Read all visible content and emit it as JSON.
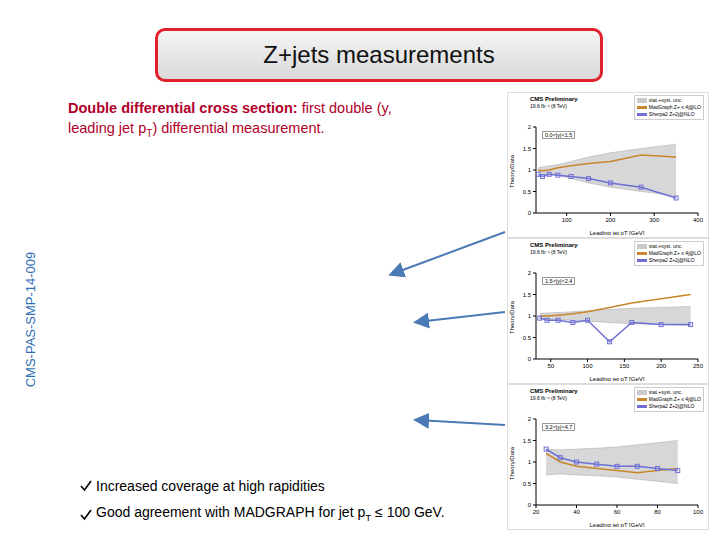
{
  "slide": {
    "title": "Z+jets measurements",
    "heading": {
      "lead": "Double differential cross section:",
      "text": " first double (y, leading jet pT) differential measurement."
    },
    "side_label": "CMS-PAS-SMP-14-009",
    "bullets": [
      "Increased coverage at high rapidities",
      "Good agreement with MADGRAPH for jet pT ≤ 100 GeV."
    ]
  },
  "chart_data": [
    {
      "type": "line",
      "title": "CMS Preliminary",
      "subtitle": "19.6 fb⁻¹ (8 TeV)",
      "annotation": "0.0<|y|<1.5",
      "x_label": "Leading jet pT [GeV]",
      "y_label": "Theory/Data",
      "xlim": [
        30,
        400
      ],
      "xticks": [
        100,
        200,
        300,
        400
      ],
      "ylim": [
        0,
        2
      ],
      "yticks": [
        0,
        0.5,
        1,
        1.5,
        2
      ],
      "legend": "upper right",
      "x": [
        35,
        45,
        60,
        80,
        110,
        150,
        200,
        270,
        350
      ],
      "series": [
        {
          "name": "stat.+syst. unc.",
          "type": "band",
          "color": "#a6a6a6",
          "low": [
            0.95,
            0.93,
            0.9,
            0.88,
            0.8,
            0.7,
            0.6,
            0.5,
            0.4
          ],
          "high": [
            1.05,
            1.07,
            1.1,
            1.12,
            1.2,
            1.3,
            1.4,
            1.5,
            1.6
          ]
        },
        {
          "name": "MadGraph Z+ ≤ 4j@LO",
          "type": "line",
          "color": "#c8862a",
          "marker": "none",
          "values": [
            1.0,
            0.98,
            1.0,
            1.05,
            1.1,
            1.15,
            1.2,
            1.35,
            1.3
          ]
        },
        {
          "name": "Sherpa2 Z+2j@NLO",
          "type": "line",
          "color": "#6f6fd6",
          "marker": "square",
          "values": [
            0.9,
            0.85,
            0.9,
            0.88,
            0.85,
            0.8,
            0.7,
            0.6,
            0.35
          ]
        }
      ]
    },
    {
      "type": "line",
      "title": "CMS Preliminary",
      "subtitle": "19.6 fb⁻¹ (8 TeV)",
      "annotation": "1.5<|y|<2.4",
      "x_label": "Leading jet pT [GeV]",
      "y_label": "Theory/Data",
      "xlim": [
        30,
        250
      ],
      "xticks": [
        50,
        100,
        150,
        200,
        250
      ],
      "ylim": [
        0,
        2
      ],
      "yticks": [
        0,
        0.5,
        1,
        1.5,
        2
      ],
      "legend": "upper right",
      "x": [
        35,
        45,
        60,
        80,
        100,
        130,
        160,
        200,
        240
      ],
      "series": [
        {
          "name": "stat.+syst. unc.",
          "type": "band",
          "color": "#a6a6a6",
          "low": [
            0.94,
            0.93,
            0.92,
            0.9,
            0.88,
            0.85,
            0.82,
            0.8,
            0.78
          ],
          "high": [
            1.06,
            1.07,
            1.08,
            1.1,
            1.12,
            1.15,
            1.18,
            1.2,
            1.22
          ]
        },
        {
          "name": "MadGraph Z+ ≤ 4j@LO",
          "type": "line",
          "color": "#c8862a",
          "marker": "none",
          "values": [
            1.0,
            1.0,
            1.02,
            1.05,
            1.1,
            1.2,
            1.3,
            1.4,
            1.5
          ]
        },
        {
          "name": "Sherpa2 Z+2j@NLO",
          "type": "line",
          "color": "#6f6fd6",
          "marker": "square",
          "values": [
            0.95,
            0.9,
            0.9,
            0.85,
            0.9,
            0.4,
            0.85,
            0.8,
            0.8
          ]
        }
      ]
    },
    {
      "type": "line",
      "title": "CMS Preliminary",
      "subtitle": "19.6 fb⁻¹ (8 TeV)",
      "annotation": "3.2<|y|<4.7",
      "x_label": "Leading jet pT [GeV]",
      "y_label": "Theory/Data",
      "xlim": [
        20,
        100
      ],
      "xticks": [
        20,
        40,
        60,
        80,
        100
      ],
      "ylim": [
        0,
        2
      ],
      "yticks": [
        0,
        0.5,
        1,
        1.5,
        2
      ],
      "legend": "upper right",
      "x": [
        25,
        32,
        40,
        50,
        60,
        70,
        80,
        90
      ],
      "series": [
        {
          "name": "stat.+syst. unc.",
          "type": "band",
          "color": "#a6a6a6",
          "low": [
            0.7,
            0.72,
            0.7,
            0.68,
            0.65,
            0.6,
            0.55,
            0.5
          ],
          "high": [
            1.3,
            1.28,
            1.3,
            1.32,
            1.35,
            1.4,
            1.45,
            1.5
          ]
        },
        {
          "name": "MadGraph Z+ ≤ 4j@LO",
          "type": "line",
          "color": "#c8862a",
          "marker": "none",
          "values": [
            1.2,
            1.0,
            0.9,
            0.85,
            0.8,
            0.75,
            0.8,
            0.85
          ]
        },
        {
          "name": "Sherpa2 Z+2j@NLO",
          "type": "line",
          "color": "#6f6fd6",
          "marker": "square",
          "values": [
            1.3,
            1.1,
            1.0,
            0.95,
            0.9,
            0.9,
            0.85,
            0.8
          ]
        }
      ]
    }
  ]
}
